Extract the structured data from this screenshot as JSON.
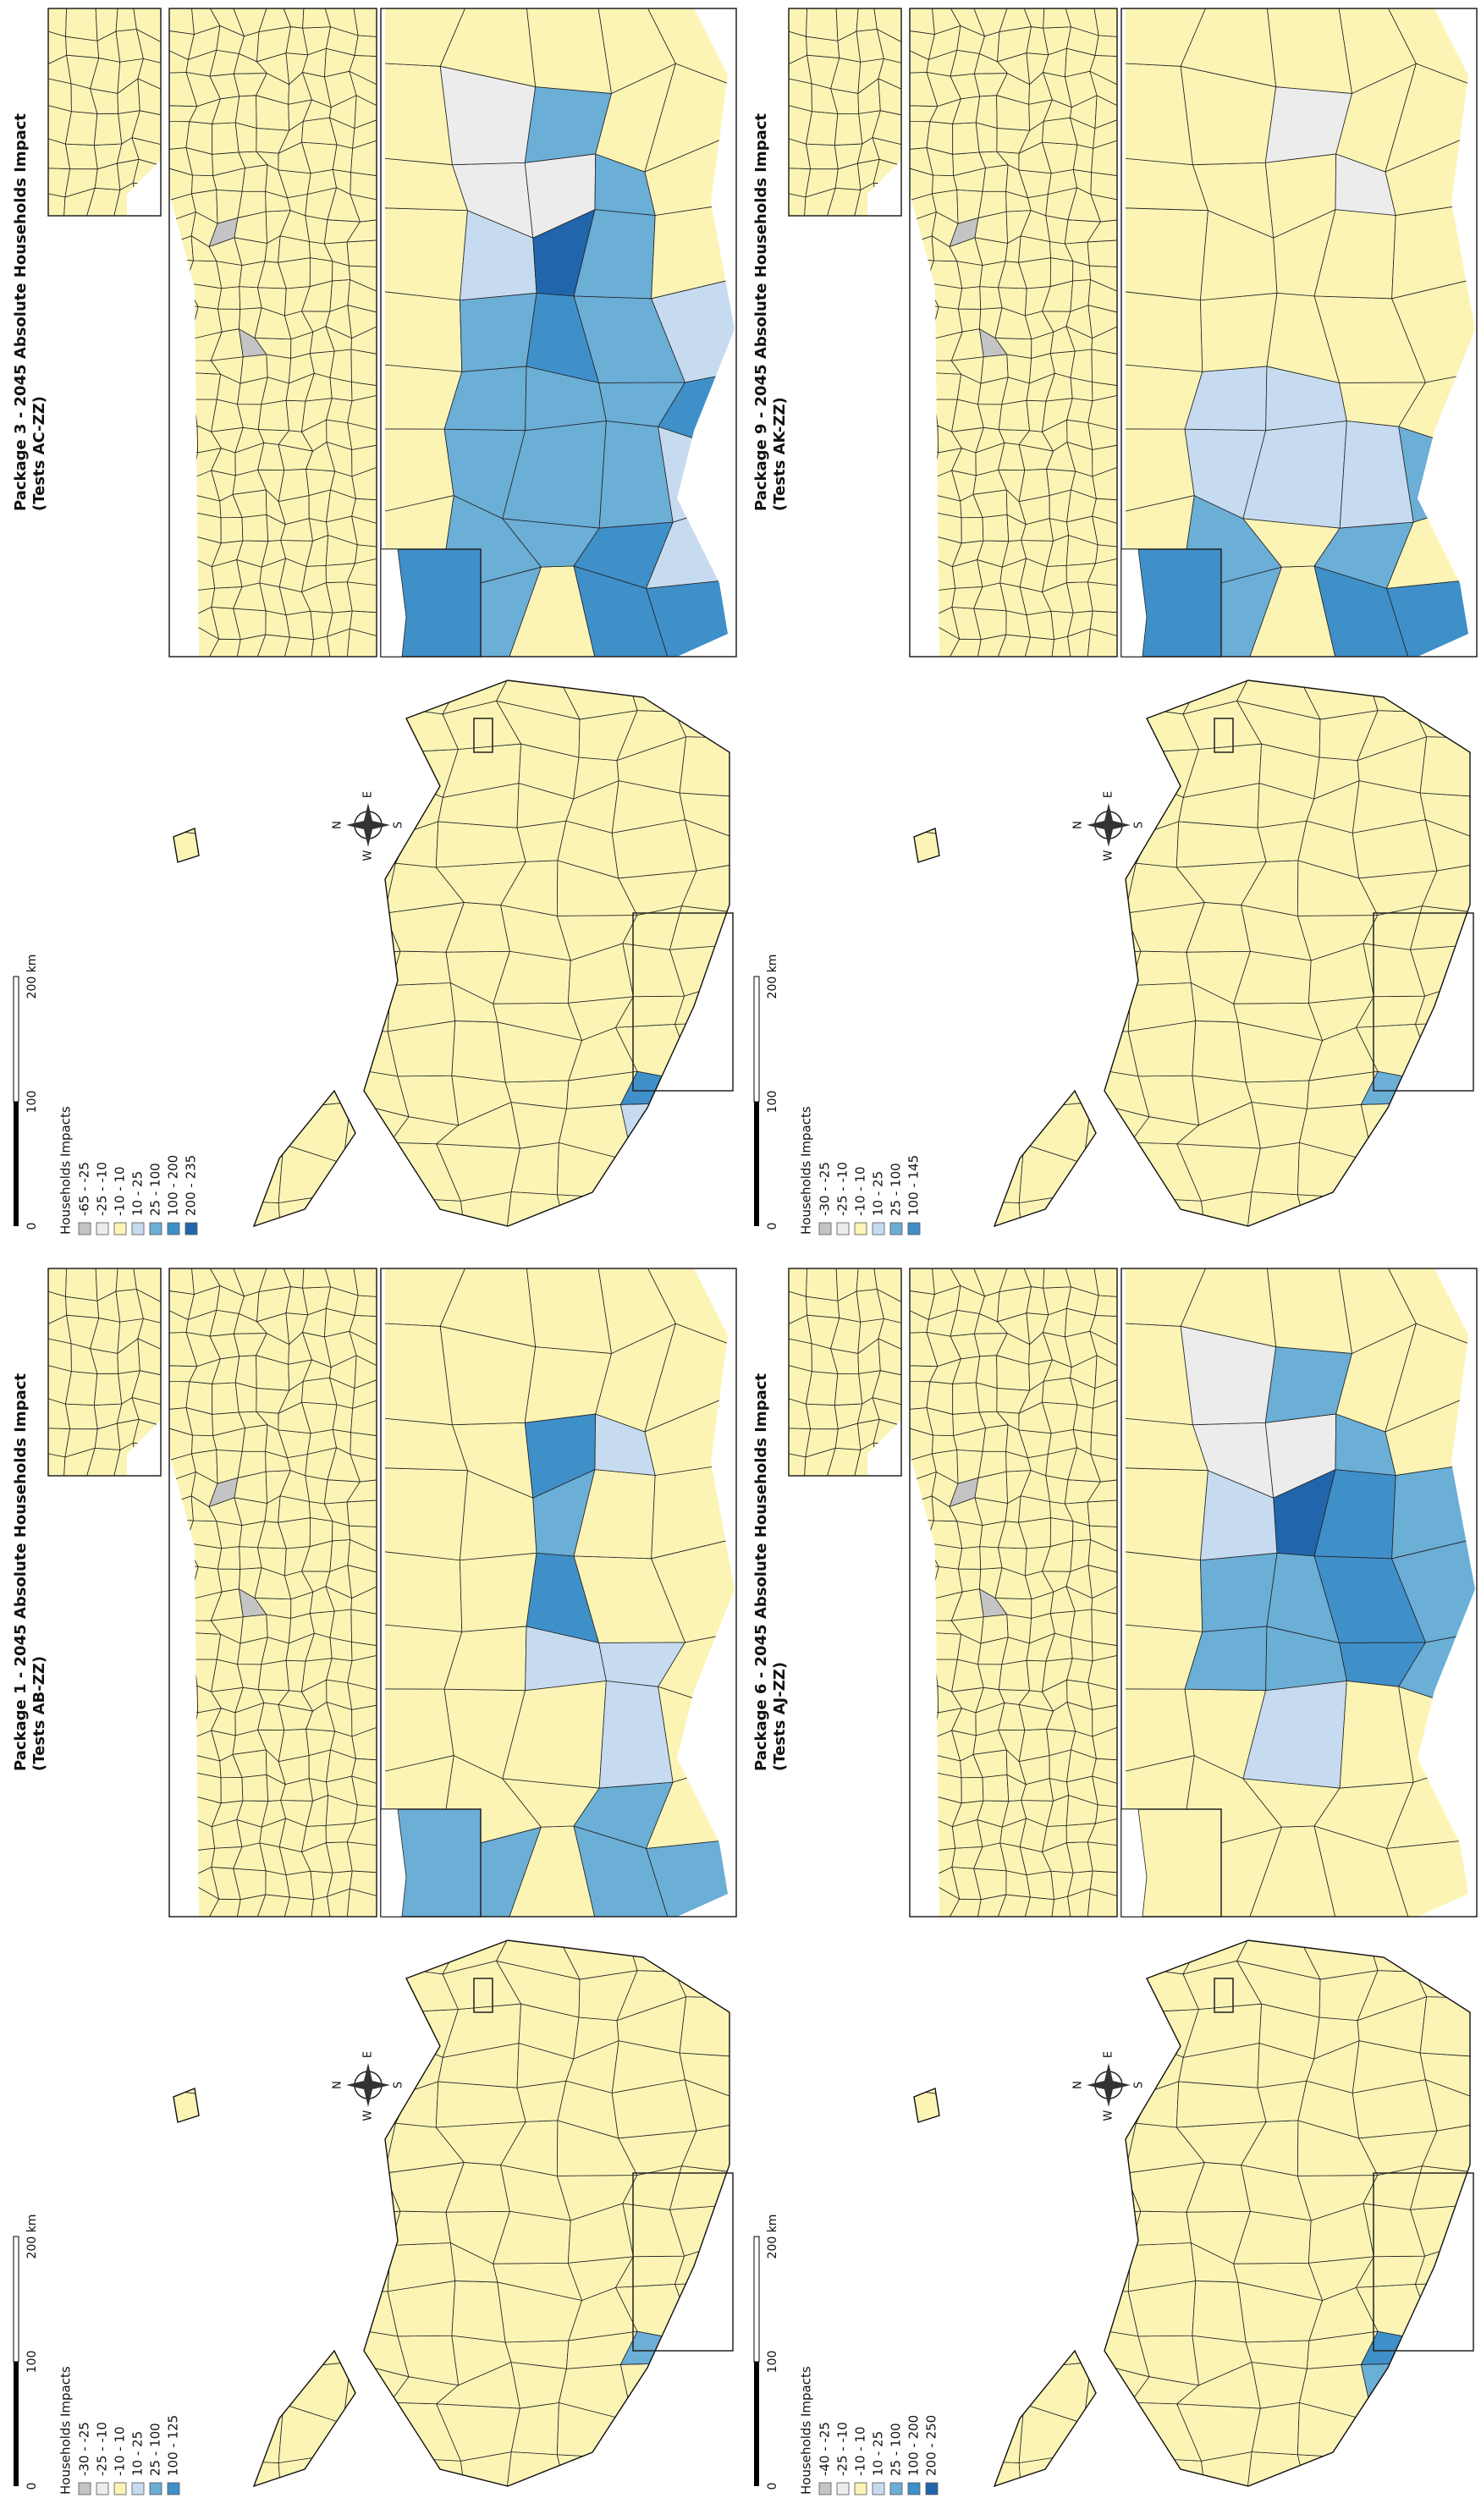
{
  "panels": [
    {
      "title": "Package 1 - 2045 Absolute Households Impact",
      "subtitle": "(Tests AB-ZZ)",
      "legend": {
        "title": "Households Impacts",
        "items": [
          {
            "label": "-30 - -25",
            "color": "#c4c4c4"
          },
          {
            "label": "-25 - -10",
            "color": "#ececec"
          },
          {
            "label": "-10 - 10",
            "color": "#fbf4b5"
          },
          {
            "label": "10 - 25",
            "color": "#c6dbef"
          },
          {
            "label": "25 - 100",
            "color": "#6baed6"
          },
          {
            "label": "100 - 125",
            "color": "#3f8fc9"
          }
        ]
      },
      "scale": [
        "0",
        "100",
        "200 km"
      ],
      "compass": [
        "N",
        "E",
        "S",
        "W"
      ]
    },
    {
      "title": "Package 3 - 2045 Absolute Households Impact",
      "subtitle": "(Tests AC-ZZ)",
      "legend": {
        "title": "Households Impacts",
        "items": [
          {
            "label": "-65 - -25",
            "color": "#c4c4c4"
          },
          {
            "label": "-25 - -10",
            "color": "#ececec"
          },
          {
            "label": "-10 - 10",
            "color": "#fbf4b5"
          },
          {
            "label": "10 - 25",
            "color": "#c6dbef"
          },
          {
            "label": "25 - 100",
            "color": "#6baed6"
          },
          {
            "label": "100 - 200",
            "color": "#3f8fc9"
          },
          {
            "label": "200 - 235",
            "color": "#2166ac"
          }
        ]
      },
      "scale": [
        "0",
        "100",
        "200 km"
      ],
      "compass": [
        "N",
        "E",
        "S",
        "W"
      ]
    },
    {
      "title": "Package 6 - 2045 Absolute Households Impact",
      "subtitle": "(Tests AJ-ZZ)",
      "legend": {
        "title": "Households Impacts",
        "items": [
          {
            "label": "-40 - -25",
            "color": "#c4c4c4"
          },
          {
            "label": "-25 - -10",
            "color": "#ececec"
          },
          {
            "label": "-10 - 10",
            "color": "#fbf4b5"
          },
          {
            "label": "10 - 25",
            "color": "#c6dbef"
          },
          {
            "label": "25 - 100",
            "color": "#6baed6"
          },
          {
            "label": "100 - 200",
            "color": "#3f8fc9"
          },
          {
            "label": "200 - 250",
            "color": "#2166ac"
          }
        ]
      },
      "scale": [
        "0",
        "100",
        "200 km"
      ],
      "compass": [
        "N",
        "E",
        "S",
        "W"
      ]
    },
    {
      "title": "Package 9 - 2045 Absolute Households Impact",
      "subtitle": "(Tests AK-ZZ)",
      "legend": {
        "title": "Households Impacts",
        "items": [
          {
            "label": "-30 - -25",
            "color": "#c4c4c4"
          },
          {
            "label": "-25 - -10",
            "color": "#ececec"
          },
          {
            "label": "-10 - 10",
            "color": "#fbf4b5"
          },
          {
            "label": "10 - 25",
            "color": "#c6dbef"
          },
          {
            "label": "25 - 100",
            "color": "#6baed6"
          },
          {
            "label": "100 - 145",
            "color": "#3f8fc9"
          }
        ]
      },
      "scale": [
        "0",
        "100",
        "200 km"
      ],
      "compass": [
        "N",
        "E",
        "S",
        "W"
      ]
    }
  ]
}
